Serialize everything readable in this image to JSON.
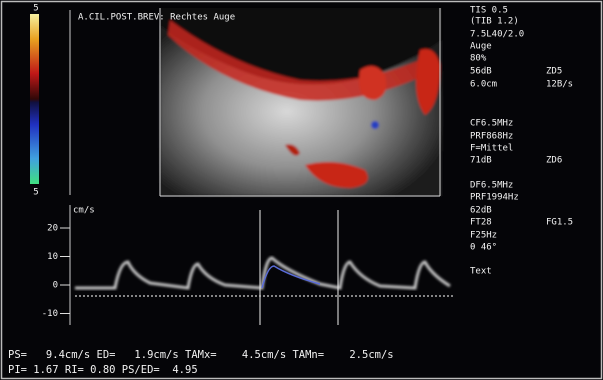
{
  "header": {
    "scale_top": "5",
    "scale_bottom": "5",
    "probe_label": "A.CIL.POST.BREV: Rechtes Auge"
  },
  "settings": [
    [
      "TIS 0.5"
    ],
    [
      "(TIB 1.2)"
    ],
    [
      "7.5L40/2.0"
    ],
    [
      "Auge"
    ],
    [
      "80%"
    ],
    [
      "56dB",
      "ZD5"
    ],
    [
      "6.0cm",
      "12B/s"
    ],
    [
      "CF6.5MHz"
    ],
    [
      "PRF868Hz"
    ],
    [
      "F=Mittel"
    ],
    [
      "71dB",
      "ZD6"
    ],
    [
      "DF6.5MHz"
    ],
    [
      "PRF1994Hz"
    ],
    [
      "62dB"
    ],
    [
      "FT28",
      "FG1.5"
    ],
    [
      "F25Hz"
    ],
    [
      "θ 46°"
    ],
    [
      "Text"
    ]
  ],
  "doppler": {
    "unit": "cm/s",
    "yticks": [
      20,
      10,
      0,
      -10
    ]
  },
  "measurements": {
    "line1": "PS=   9.4cm/s ED=   1.9cm/s TAMx=    4.5cm/s TAMn=    2.5cm/s",
    "line2": "PI= 1.67 RI= 0.80 PS/ED=  4.95"
  }
}
